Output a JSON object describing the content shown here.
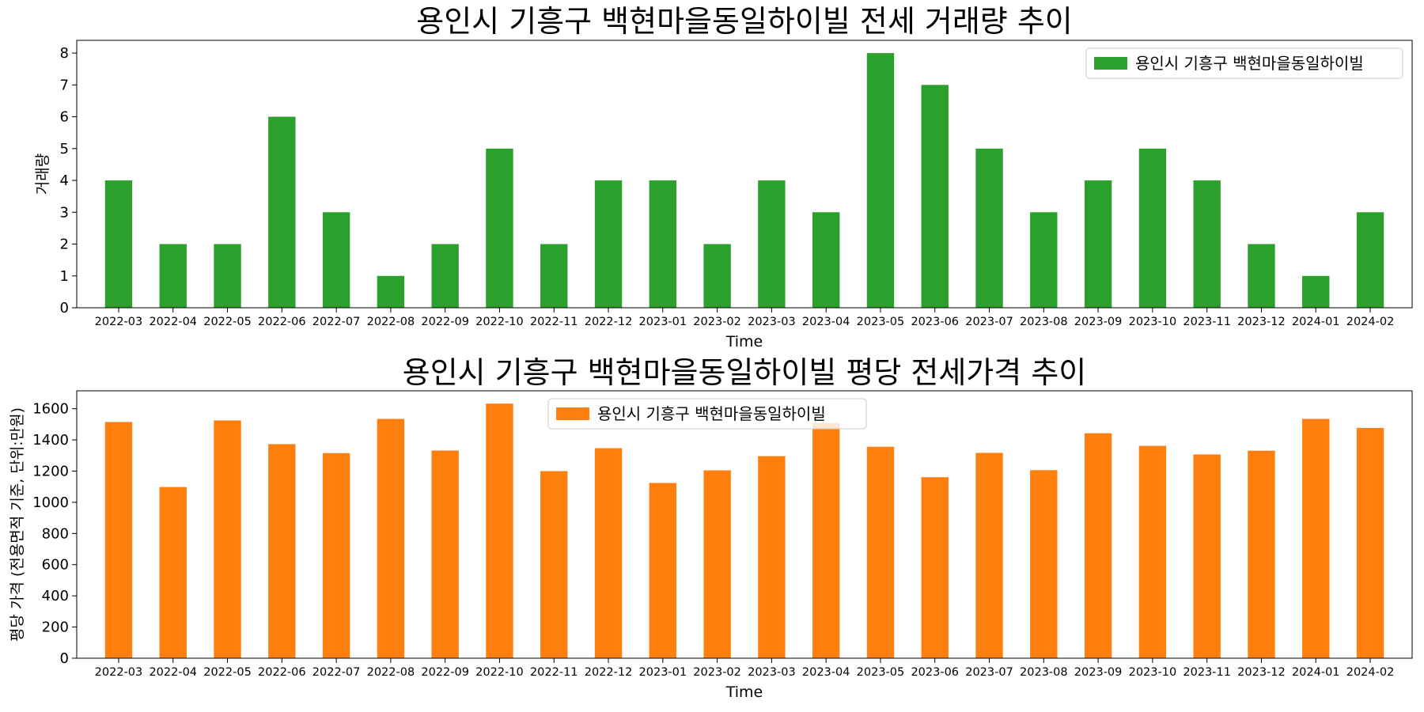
{
  "chart_data": [
    {
      "type": "bar",
      "title": "용인시 기흥구 백현마을동일하이빌 전세 거래량 추이",
      "xlabel": "Time",
      "ylabel": "거래량",
      "categories": [
        "2022-03",
        "2022-04",
        "2022-05",
        "2022-06",
        "2022-07",
        "2022-08",
        "2022-09",
        "2022-10",
        "2022-11",
        "2022-12",
        "2023-01",
        "2023-02",
        "2023-03",
        "2023-04",
        "2023-05",
        "2023-06",
        "2023-07",
        "2023-08",
        "2023-09",
        "2023-10",
        "2023-11",
        "2023-12",
        "2024-01",
        "2024-02"
      ],
      "series": [
        {
          "name": "용인시 기흥구 백현마을동일하이빌",
          "color": "#2ca02c",
          "values": [
            4,
            2,
            2,
            6,
            3,
            1,
            2,
            5,
            2,
            4,
            4,
            2,
            4,
            3,
            8,
            7,
            5,
            3,
            4,
            5,
            4,
            2,
            1,
            3
          ]
        }
      ],
      "ylim": [
        0,
        8.4
      ],
      "yticks": [
        0,
        1,
        2,
        3,
        4,
        5,
        6,
        7,
        8
      ],
      "legend": "top-right",
      "grid": false
    },
    {
      "type": "bar",
      "title": "용인시 기흥구 백현마을동일하이빌 평당 전세가격 추이",
      "xlabel": "Time",
      "ylabel": "평당 가격 (전용면적 기준, 단위:만원)",
      "categories": [
        "2022-03",
        "2022-04",
        "2022-05",
        "2022-06",
        "2022-07",
        "2022-08",
        "2022-09",
        "2022-10",
        "2022-11",
        "2022-12",
        "2023-01",
        "2023-02",
        "2023-03",
        "2023-04",
        "2023-05",
        "2023-06",
        "2023-07",
        "2023-08",
        "2023-09",
        "2023-10",
        "2023-11",
        "2023-12",
        "2024-01",
        "2024-02"
      ],
      "series": [
        {
          "name": "용인시 기흥구 백현마을동일하이빌",
          "color": "#ff7f0e",
          "values": [
            1515,
            1098,
            1525,
            1373,
            1315,
            1535,
            1332,
            1633,
            1200,
            1347,
            1124,
            1205,
            1296,
            1508,
            1356,
            1161,
            1317,
            1206,
            1443,
            1362,
            1307,
            1331,
            1535,
            1477
          ]
        }
      ],
      "ylim": [
        0,
        1715
      ],
      "yticks": [
        0,
        200,
        400,
        600,
        800,
        1000,
        1200,
        1400,
        1600
      ],
      "legend": "top-center",
      "grid": false
    }
  ]
}
